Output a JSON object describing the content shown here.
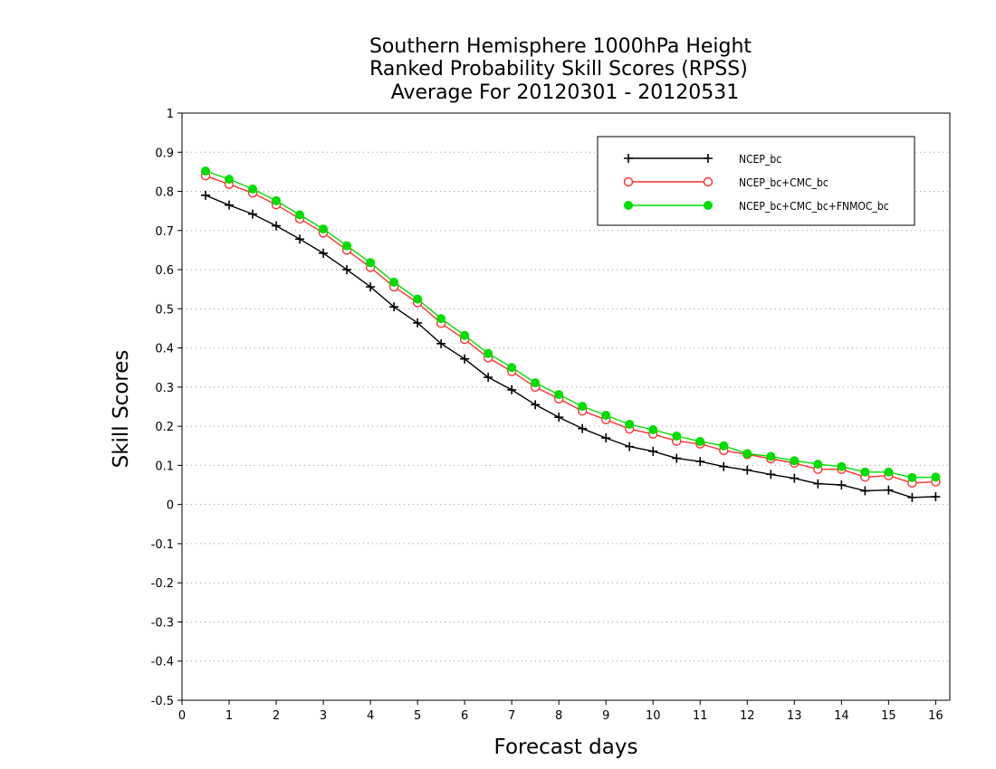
{
  "chart_data": {
    "type": "line",
    "title": [
      "Southern Hemisphere 1000hPa Height",
      "Ranked Probability Skill Scores (RPSS)",
      "Average For 20120301 - 20120531"
    ],
    "xlabel": "Forecast days",
    "ylabel": "Skill Scores",
    "xlim": [
      0,
      16.3
    ],
    "ylim": [
      -0.5,
      1
    ],
    "xticks": [
      0,
      1,
      2,
      3,
      4,
      5,
      6,
      7,
      8,
      9,
      10,
      11,
      12,
      13,
      14,
      15,
      16
    ],
    "yticks": [
      -0.5,
      -0.4,
      -0.3,
      -0.2,
      -0.1,
      0,
      0.1,
      0.2,
      0.3,
      0.4,
      0.5,
      0.6,
      0.7,
      0.8,
      0.9,
      1
    ],
    "ytick_labels": [
      "-0.5",
      "-0.4",
      "-0.3",
      "-0.2",
      "-0.1",
      "0",
      "0.1",
      "0.2",
      "0.3",
      "0.4",
      "0.5",
      "0.6",
      "0.7",
      "0.8",
      "0.9",
      "1"
    ],
    "grid": "dotted horizontal",
    "legend_position": "top-right",
    "x": [
      0.5,
      1,
      1.5,
      2,
      2.5,
      3,
      3.5,
      4,
      4.5,
      5,
      5.5,
      6,
      6.5,
      7,
      7.5,
      8,
      8.5,
      9,
      9.5,
      10,
      10.5,
      11,
      11.5,
      12,
      12.5,
      13,
      13.5,
      14,
      14.5,
      15,
      15.5,
      16
    ],
    "series": [
      {
        "name": "NCEP_bc",
        "color": "#000000",
        "marker": "plus",
        "values": [
          0.79,
          0.765,
          0.742,
          0.712,
          0.678,
          0.642,
          0.6,
          0.556,
          0.505,
          0.464,
          0.411,
          0.372,
          0.325,
          0.293,
          0.255,
          0.223,
          0.194,
          0.17,
          0.148,
          0.136,
          0.118,
          0.11,
          0.097,
          0.088,
          0.077,
          0.067,
          0.053,
          0.05,
          0.035,
          0.037,
          0.018,
          0.02
        ]
      },
      {
        "name": "NCEP_bc+CMC_bc",
        "color": "#ff3030",
        "marker": "open-circle",
        "values": [
          0.84,
          0.818,
          0.796,
          0.766,
          0.73,
          0.694,
          0.65,
          0.606,
          0.556,
          0.516,
          0.463,
          0.422,
          0.375,
          0.34,
          0.3,
          0.27,
          0.239,
          0.217,
          0.193,
          0.18,
          0.162,
          0.155,
          0.138,
          0.128,
          0.117,
          0.106,
          0.09,
          0.09,
          0.07,
          0.074,
          0.055,
          0.058
        ]
      },
      {
        "name": "NCEP_bc+CMC_bc+FNMOC_bc",
        "color": "#00dd00",
        "marker": "filled-circle",
        "values": [
          0.852,
          0.831,
          0.806,
          0.776,
          0.74,
          0.704,
          0.661,
          0.618,
          0.568,
          0.525,
          0.475,
          0.432,
          0.386,
          0.35,
          0.311,
          0.281,
          0.251,
          0.228,
          0.205,
          0.191,
          0.175,
          0.161,
          0.15,
          0.13,
          0.123,
          0.112,
          0.103,
          0.097,
          0.083,
          0.083,
          0.069,
          0.07
        ]
      }
    ]
  }
}
